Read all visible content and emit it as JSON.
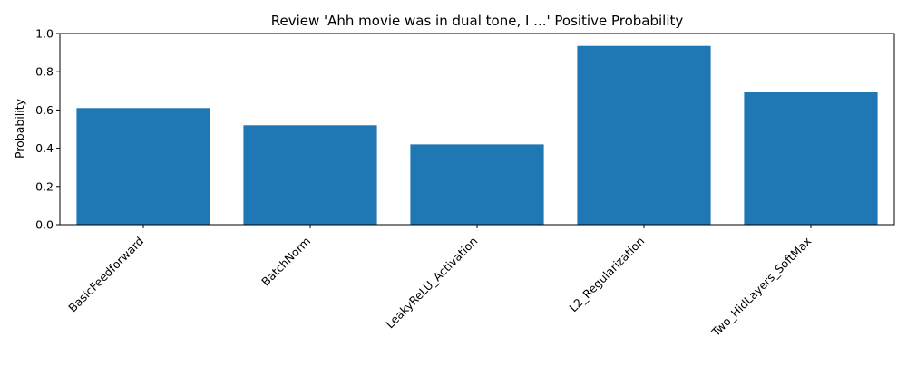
{
  "chart_data": {
    "type": "bar",
    "title": "Review 'Ahh movie was in dual tone, I ...' Positive Probability",
    "xlabel": "",
    "ylabel": "Probability",
    "categories": [
      "BasicFeedforward",
      "BatchNorm",
      "LeakyReLU_Activation",
      "L2_Regularization",
      "Two_HidLayers_SoftMax"
    ],
    "values": [
      0.61,
      0.52,
      0.42,
      0.935,
      0.695
    ],
    "ylim": [
      0,
      1.0
    ],
    "yticks": [
      "0.0",
      "0.2",
      "0.4",
      "0.6",
      "0.8",
      "1.0"
    ],
    "bar_color": "#1f77b4",
    "grid": false,
    "legend": "none"
  }
}
